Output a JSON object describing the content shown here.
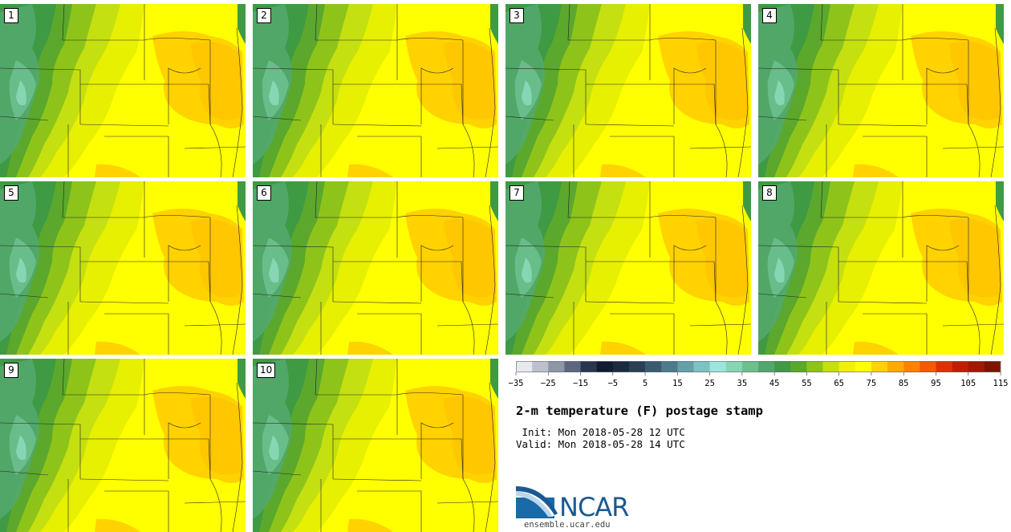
{
  "stamps": [
    {
      "label": "1"
    },
    {
      "label": "2"
    },
    {
      "label": "3"
    },
    {
      "label": "4"
    },
    {
      "label": "5"
    },
    {
      "label": "6"
    },
    {
      "label": "7"
    },
    {
      "label": "8"
    },
    {
      "label": "9"
    },
    {
      "label": "10"
    }
  ],
  "colorbar": {
    "colors": [
      "#e6e9ee",
      "#bcc1cc",
      "#8e96a8",
      "#5c6680",
      "#2a3552",
      "#101c33",
      "#1a2b40",
      "#283f58",
      "#3a5a70",
      "#4d7a8c",
      "#64a0aa",
      "#7cc3c3",
      "#9de6df",
      "#86d6b4",
      "#6cc08e",
      "#52a86c",
      "#3f9a44",
      "#5ba82c",
      "#8ec41a",
      "#c5e010",
      "#f0f000",
      "#ffff00",
      "#ffd200",
      "#ffaa00",
      "#ff8200",
      "#f45a00",
      "#dc3200",
      "#c01e00",
      "#a01800",
      "#7c1400"
    ],
    "ticks": [
      "−35",
      "−25",
      "−15",
      "−5",
      "5",
      "15",
      "25",
      "35",
      "45",
      "55",
      "65",
      "75",
      "85",
      "95",
      "105",
      "115"
    ]
  },
  "title": "2-m temperature (F) postage stamp",
  "init": " Init: Mon 2018-05-28 12 UTC",
  "valid": "Valid: Mon 2018-05-28 14 UTC",
  "logo": {
    "text": "NCAR",
    "url": "ensemble.ucar.edu"
  }
}
